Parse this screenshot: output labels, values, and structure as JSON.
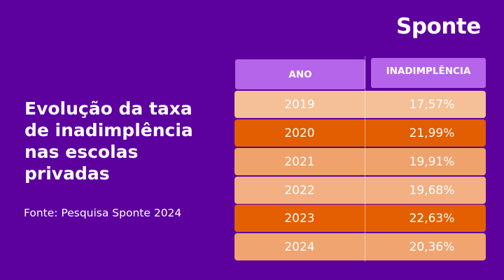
{
  "logo": "Sponte",
  "title": "Evolução da taxa de inadimplência nas escolas privadas",
  "source": "Fonte: Pesquisa Sponte 2024",
  "table": {
    "headers": [
      "ANO",
      "INADIMPLÊNCIA"
    ],
    "rows": [
      {
        "year": "2019",
        "value": "17,57%",
        "color": "#f5bf97"
      },
      {
        "year": "2020",
        "value": "21,99%",
        "color": "#e25e00"
      },
      {
        "year": "2021",
        "value": "19,91%",
        "color": "#f0a26c"
      },
      {
        "year": "2022",
        "value": "19,68%",
        "color": "#f2b083"
      },
      {
        "year": "2023",
        "value": "22,63%",
        "color": "#e35f02"
      },
      {
        "year": "2024",
        "value": "20,36%",
        "color": "#f0a470"
      }
    ]
  },
  "colors": {
    "background": "#5c009e",
    "header": "#b565ea"
  }
}
